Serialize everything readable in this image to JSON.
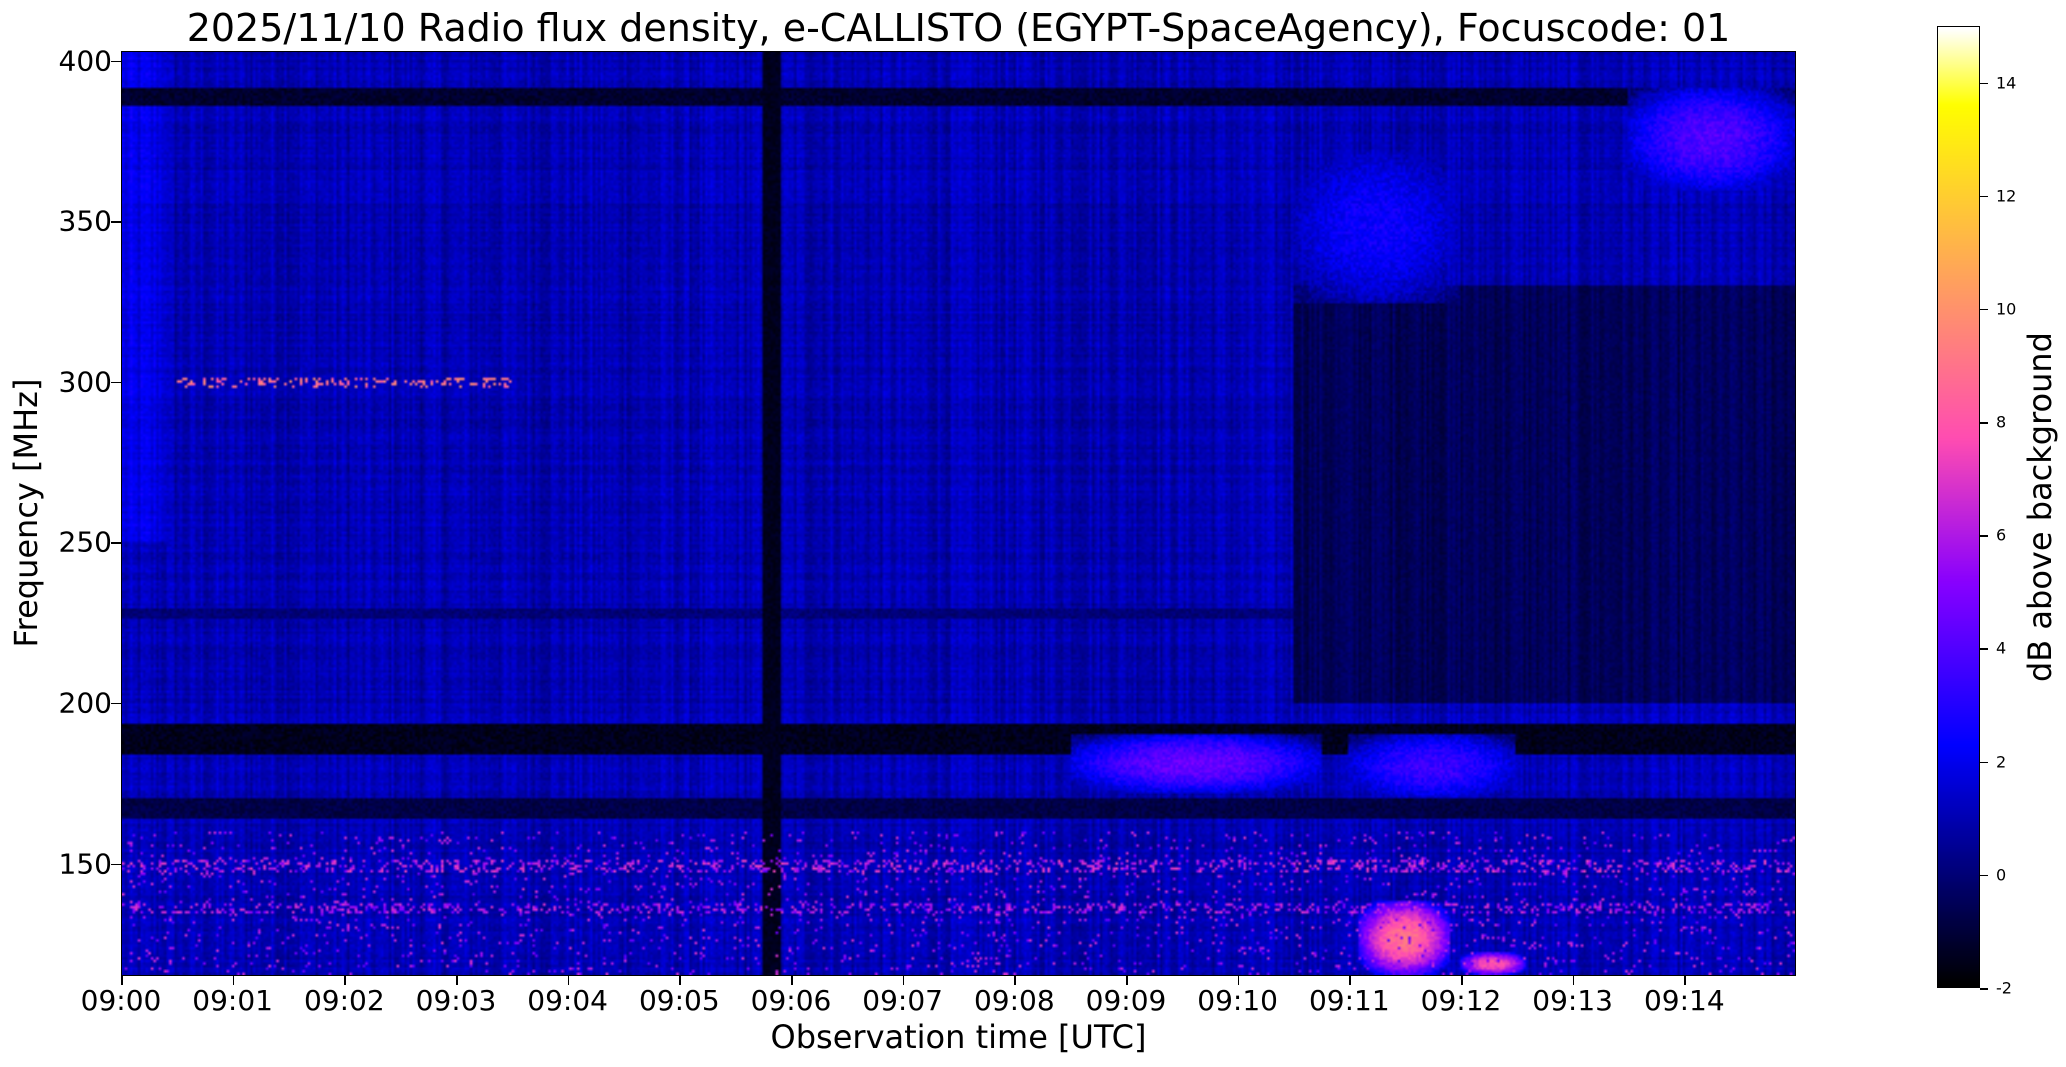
{
  "chart_data": {
    "type": "heatmap",
    "title": "2025/11/10  Radio flux density, e-CALLISTO (EGYPT-SpaceAgency), Focuscode: 01",
    "xlabel": "Observation time [UTC]",
    "ylabel": "Frequency [MHz]",
    "colorbar_label": "dB above background",
    "colormap": "gnuplot2",
    "x_ticks": [
      "09:00",
      "09:01",
      "09:02",
      "09:03",
      "09:04",
      "09:05",
      "09:06",
      "09:07",
      "09:08",
      "09:09",
      "09:10",
      "09:11",
      "09:12",
      "09:13",
      "09:14"
    ],
    "xlim": [
      "09:00",
      "09:15"
    ],
    "y_ticks": [
      150,
      200,
      250,
      300,
      350,
      400
    ],
    "ylim": [
      115,
      403
    ],
    "colorbar_ticks": [
      -2,
      0,
      2,
      4,
      6,
      8,
      10,
      12,
      14
    ],
    "colorbar_range": [
      -2,
      15
    ],
    "grid": false,
    "background_level_db": 1.0,
    "features": [
      {
        "type": "horizontal_band",
        "freq_range": [
          184,
          193
        ],
        "level_db": -1.5
      },
      {
        "type": "horizontal_band",
        "freq_range": [
          386,
          392
        ],
        "level_db": -1.2
      },
      {
        "type": "horizontal_band",
        "freq_range": [
          226,
          229
        ],
        "level_db": 0.0
      },
      {
        "type": "horizontal_band",
        "freq_range": [
          164,
          170
        ],
        "level_db": -0.8
      },
      {
        "type": "vertical_band",
        "time_range": [
          "09:05:45",
          "09:05:55"
        ],
        "level_db": -1.5
      },
      {
        "type": "quiet_region",
        "time_range": [
          "09:10:30",
          "09:15:00"
        ],
        "freq_range": [
          200,
          330
        ],
        "level_db": -0.5
      },
      {
        "type": "enhancement",
        "time_range": [
          "09:08:30",
          "09:10:45"
        ],
        "freq_range": [
          172,
          190
        ],
        "level_db": 4.5
      },
      {
        "type": "enhancement",
        "time_range": [
          "09:11:00",
          "09:12:30"
        ],
        "freq_range": [
          170,
          190
        ],
        "level_db": 3.5
      },
      {
        "type": "enhancement",
        "time_range": [
          "09:10:30",
          "09:12:00"
        ],
        "freq_range": [
          325,
          372
        ],
        "level_db": 2.5
      },
      {
        "type": "enhancement",
        "time_range": [
          "09:13:30",
          "09:15:00"
        ],
        "freq_range": [
          360,
          392
        ],
        "level_db": 4.0
      },
      {
        "type": "burst",
        "time_range": [
          "09:11:05",
          "09:11:55"
        ],
        "freq_range": [
          115,
          138
        ],
        "level_db": 9.0
      },
      {
        "type": "burst",
        "time_range": [
          "09:12:00",
          "09:12:35"
        ],
        "freq_range": [
          115,
          122
        ],
        "level_db": 8.0
      },
      {
        "type": "rfi_dots",
        "time_range": [
          "09:00:30",
          "09:03:30"
        ],
        "freq": 300,
        "level_db": 8.0
      },
      {
        "type": "rfi_dots",
        "time_range": [
          "09:00:00",
          "09:15:00"
        ],
        "freq": 149,
        "level_db": 5.5
      },
      {
        "type": "rfi_dots",
        "time_range": [
          "09:00:00",
          "09:15:00"
        ],
        "freq": 136,
        "level_db": 5.0
      }
    ]
  }
}
